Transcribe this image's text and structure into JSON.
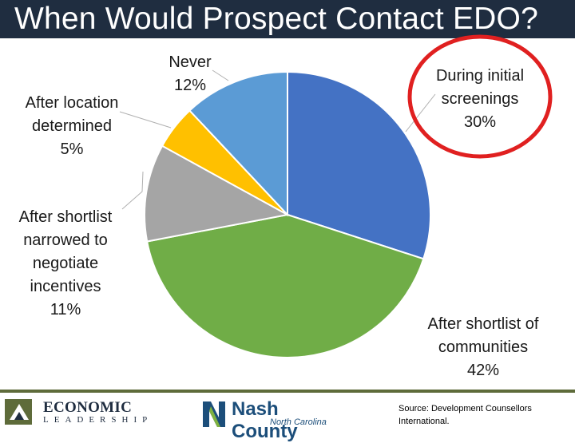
{
  "title": "When Would Prospect Contact EDO?",
  "source": "Source: Development Counsellors International.",
  "logos": {
    "economic": {
      "big": "ECONOMIC",
      "small": "LEADERSHIP"
    },
    "nash": {
      "name": "Nash County",
      "state": "North Carolina"
    }
  },
  "highlight_color": "#e02020",
  "chart_data": {
    "type": "pie",
    "title": "When Would Prospect Contact EDO?",
    "start_angle_deg": 0,
    "direction": "clockwise",
    "slices": [
      {
        "label_lines": [
          "During initial",
          "screenings",
          "30%"
        ],
        "value": 30,
        "color": "#4472c4"
      },
      {
        "label_lines": [
          "After shortlist of",
          "communities",
          "42%"
        ],
        "value": 42,
        "color": "#70ad47"
      },
      {
        "label_lines": [
          "After shortlist",
          "narrowed to",
          "negotiate",
          "incentives",
          "11%"
        ],
        "value": 11,
        "color": "#a5a5a5"
      },
      {
        "label_lines": [
          "After location",
          "determined",
          "5%"
        ],
        "value": 5,
        "color": "#ffc000"
      },
      {
        "label_lines": [
          "Never",
          "12%"
        ],
        "value": 12,
        "color": "#5b9bd5"
      }
    ],
    "highlighted_slice": "During initial screenings"
  }
}
